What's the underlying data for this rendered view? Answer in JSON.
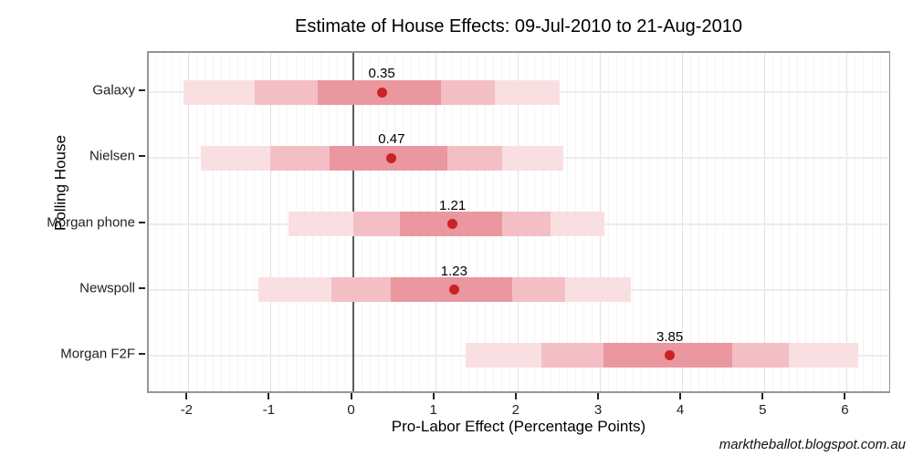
{
  "title": "Estimate of House Effects: 09-Jul-2010 to 21-Aug-2010",
  "watermark": "marktheballot.blogspot.com.au",
  "chart_data": {
    "type": "interval-dot-horizontal",
    "title": "Estimate of House Effects: 09-Jul-2010 to 21-Aug-2010",
    "xlabel": "Pro-Labor Effect (Percentage Points)",
    "ylabel": "Polling House",
    "xlim": [
      -2.48,
      6.55
    ],
    "x_major_ticks": [
      -2,
      -1,
      0,
      1,
      2,
      3,
      4,
      5,
      6
    ],
    "x_tick_labels": [
      "-2",
      "-1",
      "0",
      "1",
      "2",
      "3",
      "4",
      "5",
      "6"
    ],
    "x_minor_step": 0.1,
    "reference_line_x": 0,
    "grid": true,
    "legend": "none",
    "categories": [
      "Galaxy",
      "Nielsen",
      "Morgan phone",
      "Newspoll",
      "Morgan F2F"
    ],
    "series": [
      {
        "house": "Galaxy",
        "estimate": 0.35,
        "estimate_label": "0.35",
        "inner": [
          -0.43,
          1.07
        ],
        "middle": [
          -1.19,
          1.73
        ],
        "outer": [
          -2.06,
          2.51
        ]
      },
      {
        "house": "Nielsen",
        "estimate": 0.47,
        "estimate_label": "0.47",
        "inner": [
          -0.28,
          1.15
        ],
        "middle": [
          -1.0,
          1.81
        ],
        "outer": [
          -1.85,
          2.56
        ]
      },
      {
        "house": "Morgan phone",
        "estimate": 1.21,
        "estimate_label": "1.21",
        "inner": [
          0.57,
          1.81
        ],
        "middle": [
          0.0,
          2.4
        ],
        "outer": [
          -0.78,
          3.06
        ]
      },
      {
        "house": "Newspoll",
        "estimate": 1.23,
        "estimate_label": "1.23",
        "inner": [
          0.46,
          1.94
        ],
        "middle": [
          -0.26,
          2.58
        ],
        "outer": [
          -1.15,
          3.38
        ]
      },
      {
        "house": "Morgan F2F",
        "estimate": 3.85,
        "estimate_label": "3.85",
        "inner": [
          3.04,
          4.61
        ],
        "middle": [
          2.29,
          5.3
        ],
        "outer": [
          1.37,
          6.14
        ]
      }
    ],
    "colors": {
      "dot": "#cb2127",
      "band_inner": "#ea979f",
      "band_middle": "#f3bfc5",
      "band_outer": "#fadfe2",
      "zero_line": "#5b5b5b",
      "grid_major": "#e2e2e2",
      "grid_minor": "#f4f4f4",
      "grid_row": "#ececec",
      "panel_border": "#969696"
    }
  }
}
